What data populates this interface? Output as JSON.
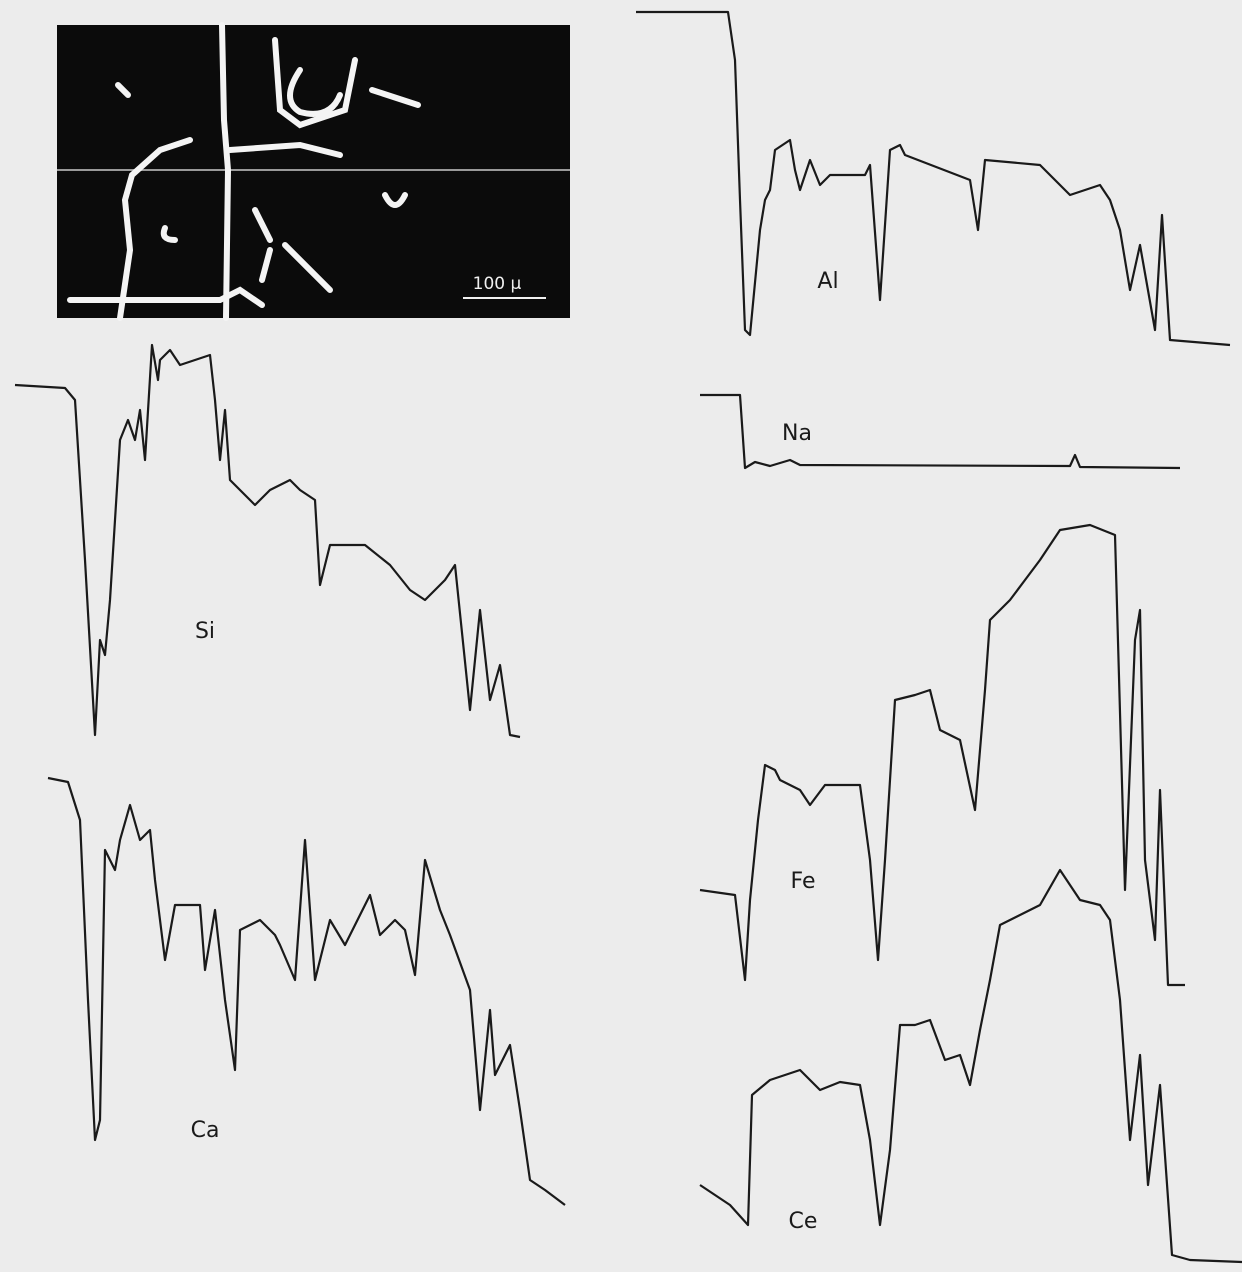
{
  "micrograph": {
    "scale_bar": "100 µ"
  },
  "traces": [
    {
      "label": "Al"
    },
    {
      "label": "Na"
    },
    {
      "label": "Si"
    },
    {
      "label": "Fe"
    },
    {
      "label": "Ca"
    },
    {
      "label": "Ce"
    }
  ]
}
